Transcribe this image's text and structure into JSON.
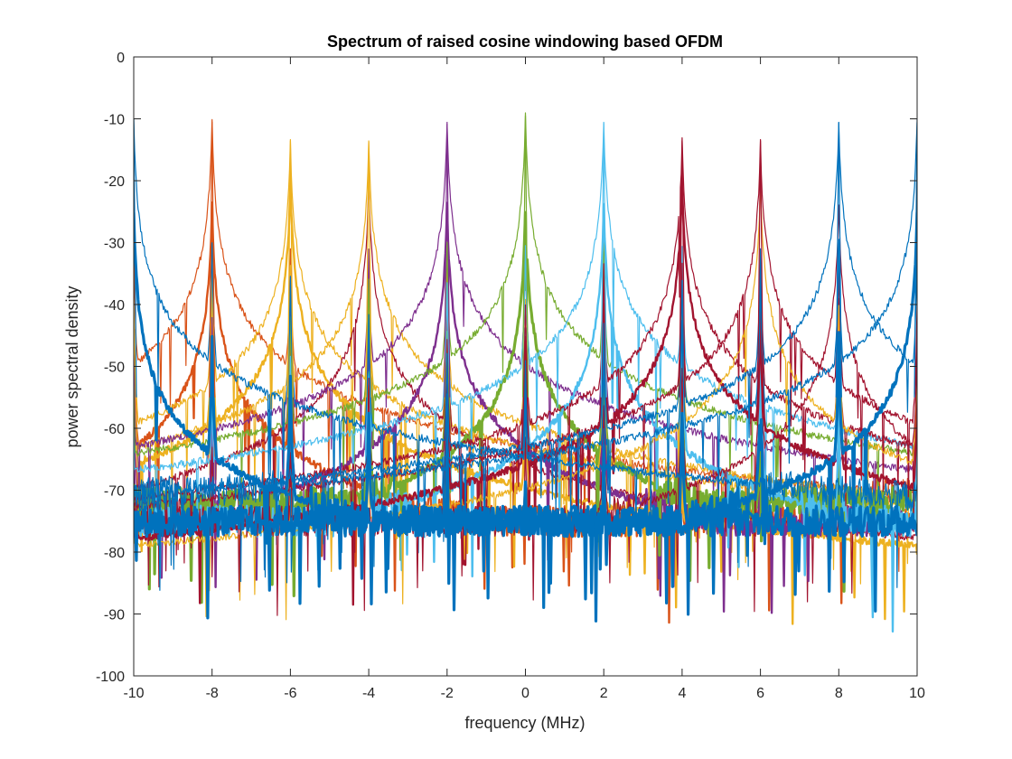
{
  "chart_data": {
    "type": "line",
    "title": "Spectrum of raised cosine windowing based OFDM",
    "xlabel": "frequency (MHz)",
    "ylabel": "power spectral density",
    "xlim": [
      -10,
      10
    ],
    "ylim": [
      -100,
      0
    ],
    "xticks": [
      -10,
      -8,
      -6,
      -4,
      -2,
      0,
      2,
      4,
      6,
      8,
      10
    ],
    "yticks": [
      0,
      -10,
      -20,
      -30,
      -40,
      -50,
      -60,
      -70,
      -80,
      -90,
      -100
    ],
    "xtick_labels": [
      "-10",
      "-8",
      "-6",
      "-4",
      "-2",
      "0",
      "2",
      "4",
      "6",
      "8",
      "10"
    ],
    "ytick_labels": [
      "0",
      "-10",
      "-20",
      "-30",
      "-40",
      "-50",
      "-60",
      "-70",
      "-80",
      "-90",
      "-100"
    ],
    "grid": false,
    "legend": "none",
    "subcarrier_spacing": 2,
    "peaks": [
      {
        "x": -10,
        "y": -10,
        "color": "#0072BD"
      },
      {
        "x": -8,
        "y": -10.5,
        "color": "#D95319"
      },
      {
        "x": -6,
        "y": -13.5,
        "color": "#EDB120"
      },
      {
        "x": -4,
        "y": -13.5,
        "color": "#EDB120"
      },
      {
        "x": -2,
        "y": -10.5,
        "color": "#7E2F8E"
      },
      {
        "x": 0,
        "y": -9.5,
        "color": "#77AC30"
      },
      {
        "x": 2,
        "y": -10.5,
        "color": "#4DBEEE"
      },
      {
        "x": 4,
        "y": -13.5,
        "color": "#A2142F"
      },
      {
        "x": 6,
        "y": -13.5,
        "color": "#A2142F"
      },
      {
        "x": 8,
        "y": -10.5,
        "color": "#0072BD"
      },
      {
        "x": 10,
        "y": -10,
        "color": "#0072BD"
      }
    ],
    "series": [
      {
        "center": -8,
        "peak": -10.5,
        "floor": -54.5,
        "noise_floor": -73,
        "color": "#D95319",
        "width": 1.2
      },
      {
        "center": -8,
        "peak": -24,
        "floor": -55,
        "noise_floor": -75,
        "color": "#D95319",
        "width": 2.4
      },
      {
        "center": -6,
        "peak": -13.5,
        "floor": -53,
        "noise_floor": -78,
        "color": "#EDB120",
        "width": 1.2
      },
      {
        "center": -6,
        "peak": -20,
        "floor": -55,
        "noise_floor": -82,
        "color": "#EDB120",
        "width": 2.4
      },
      {
        "center": -4,
        "peak": -13.5,
        "floor": -53,
        "noise_floor": -78,
        "color": "#EDB120",
        "width": 1.2
      },
      {
        "center": -4,
        "peak": -20,
        "floor": -55,
        "noise_floor": -82,
        "color": "#A2142F",
        "width": 1.2
      },
      {
        "center": -2,
        "peak": -10.5,
        "floor": -53,
        "noise_floor": -74,
        "color": "#7E2F8E",
        "width": 1.2
      },
      {
        "center": -2,
        "peak": -24,
        "floor": -55,
        "noise_floor": -75,
        "color": "#7E2F8E",
        "width": 2.4
      },
      {
        "center": 0,
        "peak": -9.5,
        "floor": -52,
        "noise_floor": -72,
        "color": "#77AC30",
        "width": 1.2
      },
      {
        "center": 0,
        "peak": -25,
        "floor": -60,
        "noise_floor": -72,
        "color": "#77AC30",
        "width": 3.2
      },
      {
        "center": 2,
        "peak": -10.5,
        "floor": -53,
        "noise_floor": -75,
        "color": "#4DBEEE",
        "width": 1.2
      },
      {
        "center": 2,
        "peak": -24,
        "floor": -55,
        "noise_floor": -75,
        "color": "#4DBEEE",
        "width": 2.4
      },
      {
        "center": 4,
        "peak": -13.5,
        "floor": -53,
        "noise_floor": -78,
        "color": "#A2142F",
        "width": 1.2
      },
      {
        "center": 4,
        "peak": -20,
        "floor": -55,
        "noise_floor": -82,
        "color": "#A2142F",
        "width": 2.4
      },
      {
        "center": 6,
        "peak": -13.5,
        "floor": -53,
        "noise_floor": -78,
        "color": "#A2142F",
        "width": 1.2
      },
      {
        "center": 6,
        "peak": -20,
        "floor": -55,
        "noise_floor": -82,
        "color": "#EDB120",
        "width": 1.2
      },
      {
        "center": 8,
        "peak": -10.5,
        "floor": -54.5,
        "noise_floor": -73,
        "color": "#0072BD",
        "width": 1.2
      },
      {
        "center": 8,
        "peak": -24,
        "floor": -55,
        "noise_floor": -75,
        "color": "#A2142F",
        "width": 1.2
      },
      {
        "center": 10,
        "peak": -10,
        "floor": -55,
        "noise_floor": -72,
        "color": "#0072BD",
        "width": 1.2
      },
      {
        "center": -10,
        "peak": -10,
        "floor": -55,
        "noise_floor": -72,
        "color": "#0072BD",
        "width": 1.2
      },
      {
        "center": -10,
        "peak": -25,
        "floor": -62,
        "noise_floor": -75,
        "color": "#0072BD",
        "width": 3.2
      },
      {
        "center": 10,
        "peak": -25,
        "floor": -62,
        "noise_floor": -75,
        "color": "#0072BD",
        "width": 3.2
      }
    ]
  }
}
